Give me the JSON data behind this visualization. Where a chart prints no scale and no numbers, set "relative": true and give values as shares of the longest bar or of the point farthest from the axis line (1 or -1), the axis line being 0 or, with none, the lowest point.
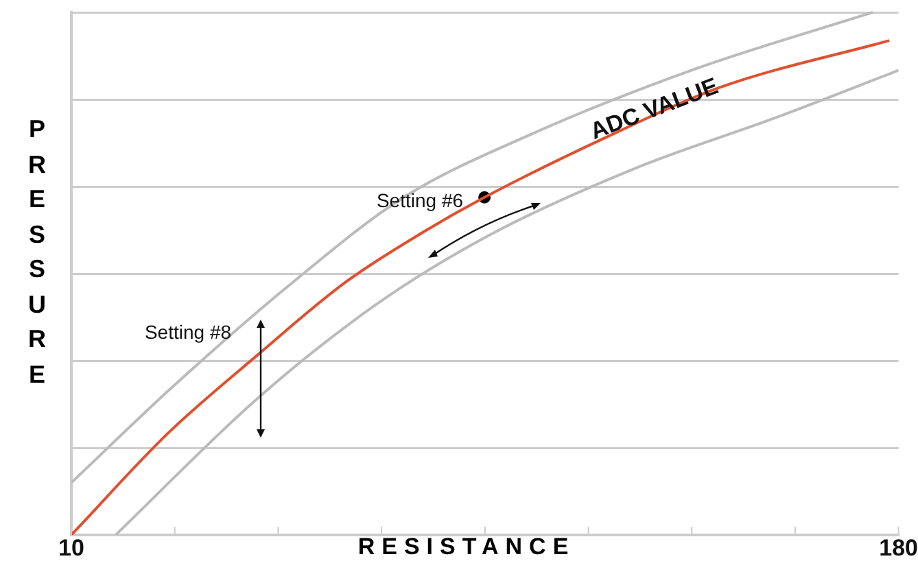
{
  "chart_data": {
    "type": "line",
    "xlabel": "RESISTANCE",
    "ylabel": "PRESSURE",
    "relative": true,
    "grid": "y",
    "legend": false,
    "marker": "none",
    "line_style": "solid",
    "xlim": [
      10,
      180
    ],
    "xticks": [
      10,
      {
        "value": 31.25,
        "label": null
      },
      {
        "value": 52.5,
        "label": null
      },
      {
        "value": 73.75,
        "label": null
      },
      {
        "value": 95,
        "label": null
      },
      {
        "value": 116.25,
        "label": null
      },
      {
        "value": 137.5,
        "label": null
      },
      {
        "value": 158.75,
        "label": null
      },
      180
    ],
    "annotations": [
      "ADC VALUE",
      "Setting #6",
      "Setting #8"
    ],
    "series": [
      {
        "color": "#bbbbbb",
        "x": [
          10,
          31,
          54.8,
          78.3,
          104.3,
          137.4,
          174.7
        ],
        "values": [
          0.1,
          0.285,
          0.478,
          0.646,
          0.766,
          0.889,
          1
        ]
      },
      {
        "color": "#e0502f",
        "x": [
          10,
          29.9,
          48.1,
          66.4,
          82.4,
          94.9,
          119.7,
          143.2,
          178.1
        ],
        "values": [
          0,
          0.195,
          0.343,
          0.484,
          0.58,
          0.646,
          0.76,
          0.856,
          0.946
        ]
      },
      {
        "color": "#bbbbbb",
        "x": [
          19.1,
          48.1,
          72.5,
          96,
          125.5,
          155.2,
          180
        ],
        "values": [
          0,
          0.26,
          0.44,
          0.574,
          0.7,
          0.8,
          0.889
        ]
      },
      {
        "type": "scatter",
        "marker": "circle",
        "color": "#000000",
        "x": [
          94.9
        ],
        "values": [
          0.646
        ]
      }
    ]
  }
}
